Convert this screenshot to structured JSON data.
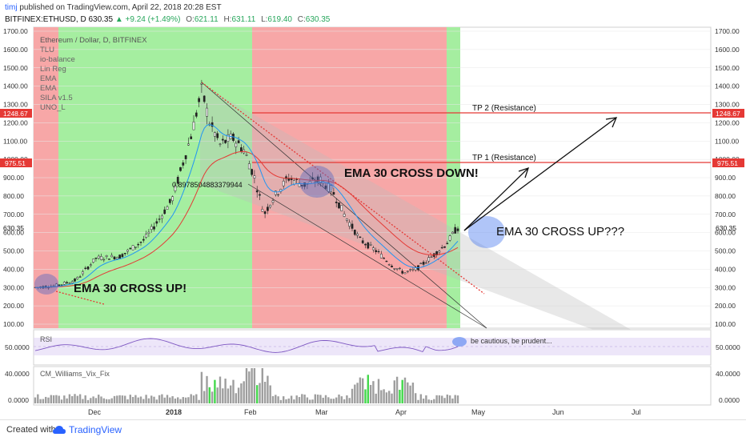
{
  "header": {
    "user": "timj",
    "published": "published on TradingView.com, April 22, 2018 20:28 EST",
    "symbol": "BITFINEX:ETHUSD, D",
    "price": "630.35",
    "change": "▲ +9.24 (+1.49%)",
    "o_label": "O:",
    "o_value": "621.11",
    "h_label": "H:",
    "h_value": "631.11",
    "l_label": "L:",
    "l_value": "619.40",
    "c_label": "C:",
    "c_value": "630.35"
  },
  "indicators": [
    "Ethereum / Dollar, D, BITFINEX",
    "TLU",
    "io-balance",
    "Lin Reg",
    "EMA",
    "EMA",
    "SILA v1.5",
    "UNO_L"
  ],
  "annotations": {
    "cross_up": "EMA 30 CROSS UP!",
    "cross_down": "EMA 30 CROSS DOWN!",
    "cross_up_q": "EMA 30 CROSS UP???",
    "tp1": "TP 1 (Resistance)",
    "tp2": "TP 2 (Resistance)",
    "linreg_value": "0.8978504883379944",
    "rsi_note": "be cautious, be prudent..."
  },
  "price_axis": {
    "ticks": [
      "1700.00",
      "1600.00",
      "1500.00",
      "1400.00",
      "1300.00",
      "1200.00",
      "1100.00",
      "1000.00",
      "900.00",
      "800.00",
      "700.00",
      "600.00",
      "500.00",
      "400.00",
      "300.00",
      "200.00",
      "100.00"
    ],
    "resistance_1": "975.51",
    "resistance_2": "1248.67",
    "last": "630.35"
  },
  "rsi": {
    "label": "RSI",
    "tick": "50.0000"
  },
  "vix": {
    "label": "CM_Williams_Vix_Fix",
    "tick_top": "40.0000",
    "tick_bottom": "0.0000"
  },
  "time_axis": [
    "Dec",
    "2018",
    "Feb",
    "Mar",
    "Apr",
    "May",
    "Jun",
    "Jul"
  ],
  "footer": {
    "created": "Created with",
    "brand": "TradingView"
  },
  "colors": {
    "bull": "#26a65b",
    "bear": "#e53935",
    "zone_green": "#a5eea0",
    "zone_red": "#f7a7a7",
    "ema_fast": "#2196f3",
    "ema_slow": "#e53935",
    "link": "#2962ff"
  }
}
